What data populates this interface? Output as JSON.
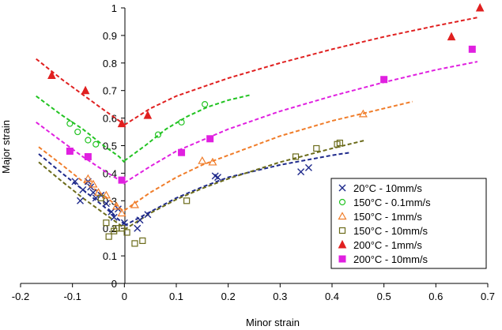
{
  "chart_data": {
    "type": "scatter",
    "title": "",
    "xlabel": "Minor strain",
    "ylabel": "Major strain",
    "xlim": [
      -0.2,
      0.7
    ],
    "ylim": [
      0,
      1
    ],
    "x_ticks": [
      "-0.2",
      "-0.1",
      "0",
      "0.1",
      "0.2",
      "0.3",
      "0.4",
      "0.5",
      "0.6",
      "0.7"
    ],
    "y_ticks": [
      "0",
      "0.1",
      "0.2",
      "0.3",
      "0.4",
      "0.5",
      "0.6",
      "0.7",
      "0.8",
      "0.9",
      "1"
    ],
    "grid": false,
    "legend_position": "bottom-right",
    "series": [
      {
        "name": "20°C - 10mm/s",
        "color": "#1f2a8c",
        "marker": "x",
        "points": [
          [
            -0.095,
            0.37
          ],
          [
            -0.085,
            0.3
          ],
          [
            -0.08,
            0.34
          ],
          [
            -0.07,
            0.37
          ],
          [
            -0.065,
            0.35
          ],
          [
            -0.06,
            0.33
          ],
          [
            -0.055,
            0.31
          ],
          [
            -0.045,
            0.32
          ],
          [
            -0.035,
            0.29
          ],
          [
            -0.025,
            0.26
          ],
          [
            -0.02,
            0.24
          ],
          [
            -0.012,
            0.27
          ],
          [
            0.0,
            0.22
          ],
          [
            0.025,
            0.2
          ],
          [
            0.03,
            0.23
          ],
          [
            0.045,
            0.25
          ],
          [
            0.175,
            0.39
          ],
          [
            0.18,
            0.385
          ],
          [
            0.34,
            0.405
          ],
          [
            0.355,
            0.42
          ]
        ],
        "fit": {
          "left": [
            [
              -0.165,
              0.47
            ],
            [
              -0.12,
              0.4
            ],
            [
              -0.08,
              0.34
            ],
            [
              -0.04,
              0.28
            ],
            [
              -0.01,
              0.23
            ],
            [
              0.0,
              0.215
            ]
          ],
          "right": [
            [
              0.0,
              0.21
            ],
            [
              0.05,
              0.26
            ],
            [
              0.1,
              0.31
            ],
            [
              0.15,
              0.35
            ],
            [
              0.2,
              0.385
            ],
            [
              0.3,
              0.43
            ],
            [
              0.4,
              0.465
            ],
            [
              0.435,
              0.475
            ]
          ]
        }
      },
      {
        "name": "150°C - 0.1mm/s",
        "color": "#22c322",
        "marker": "circle-open",
        "points": [
          [
            -0.105,
            0.58
          ],
          [
            -0.09,
            0.55
          ],
          [
            -0.07,
            0.52
          ],
          [
            -0.055,
            0.505
          ],
          [
            0.065,
            0.54
          ],
          [
            0.11,
            0.585
          ],
          [
            0.155,
            0.65
          ]
        ],
        "fit": {
          "left": [
            [
              -0.17,
              0.68
            ],
            [
              -0.12,
              0.61
            ],
            [
              -0.08,
              0.56
            ],
            [
              -0.04,
              0.5
            ],
            [
              -0.01,
              0.46
            ],
            [
              0.0,
              0.44
            ]
          ],
          "right": [
            [
              0.0,
              0.445
            ],
            [
              0.04,
              0.5
            ],
            [
              0.08,
              0.56
            ],
            [
              0.12,
              0.605
            ],
            [
              0.16,
              0.64
            ],
            [
              0.2,
              0.665
            ],
            [
              0.245,
              0.685
            ]
          ]
        }
      },
      {
        "name": "150°C - 1mm/s",
        "color": "#f07d2a",
        "marker": "triangle-open",
        "points": [
          [
            -0.07,
            0.38
          ],
          [
            -0.06,
            0.36
          ],
          [
            -0.05,
            0.33
          ],
          [
            -0.035,
            0.32
          ],
          [
            -0.015,
            0.28
          ],
          [
            -0.005,
            0.255
          ],
          [
            0.02,
            0.285
          ],
          [
            0.15,
            0.445
          ],
          [
            0.17,
            0.44
          ],
          [
            0.46,
            0.615
          ]
        ],
        "fit": {
          "left": [
            [
              -0.165,
              0.495
            ],
            [
              -0.12,
              0.43
            ],
            [
              -0.08,
              0.37
            ],
            [
              -0.04,
              0.32
            ],
            [
              -0.01,
              0.275
            ],
            [
              0.0,
              0.26
            ]
          ],
          "right": [
            [
              0.0,
              0.265
            ],
            [
              0.05,
              0.33
            ],
            [
              0.1,
              0.385
            ],
            [
              0.15,
              0.43
            ],
            [
              0.2,
              0.465
            ],
            [
              0.3,
              0.535
            ],
            [
              0.4,
              0.59
            ],
            [
              0.5,
              0.635
            ],
            [
              0.555,
              0.66
            ]
          ]
        }
      },
      {
        "name": "150°C - 10mm/s",
        "color": "#6b6b1a",
        "marker": "square-open",
        "points": [
          [
            -0.045,
            0.31
          ],
          [
            -0.035,
            0.22
          ],
          [
            -0.03,
            0.17
          ],
          [
            -0.02,
            0.19
          ],
          [
            -0.015,
            0.2
          ],
          [
            -0.005,
            0.2
          ],
          [
            0.005,
            0.185
          ],
          [
            0.02,
            0.145
          ],
          [
            0.035,
            0.155
          ],
          [
            0.12,
            0.3
          ],
          [
            0.33,
            0.46
          ],
          [
            0.37,
            0.49
          ],
          [
            0.41,
            0.505
          ],
          [
            0.415,
            0.51
          ]
        ],
        "fit": {
          "left": [
            [
              -0.165,
              0.44
            ],
            [
              -0.12,
              0.37
            ],
            [
              -0.08,
              0.31
            ],
            [
              -0.04,
              0.255
            ],
            [
              -0.01,
              0.215
            ],
            [
              0.0,
              0.2
            ]
          ],
          "right": [
            [
              0.0,
              0.195
            ],
            [
              0.05,
              0.255
            ],
            [
              0.1,
              0.305
            ],
            [
              0.15,
              0.345
            ],
            [
              0.2,
              0.38
            ],
            [
              0.3,
              0.44
            ],
            [
              0.4,
              0.49
            ],
            [
              0.465,
              0.52
            ]
          ]
        }
      },
      {
        "name": "200°C - 1mm/s",
        "color": "#e02020",
        "marker": "triangle-filled",
        "points": [
          [
            -0.14,
            0.755
          ],
          [
            -0.075,
            0.7
          ],
          [
            -0.005,
            0.58
          ],
          [
            0.045,
            0.61
          ],
          [
            0.63,
            0.895
          ],
          [
            0.685,
            1.0
          ]
        ],
        "fit": {
          "left": [
            [
              -0.17,
              0.815
            ],
            [
              -0.12,
              0.74
            ],
            [
              -0.08,
              0.685
            ],
            [
              -0.04,
              0.63
            ],
            [
              -0.01,
              0.59
            ],
            [
              0.0,
              0.575
            ]
          ],
          "right": [
            [
              0.0,
              0.575
            ],
            [
              0.05,
              0.635
            ],
            [
              0.1,
              0.68
            ],
            [
              0.2,
              0.745
            ],
            [
              0.3,
              0.8
            ],
            [
              0.4,
              0.85
            ],
            [
              0.5,
              0.895
            ],
            [
              0.6,
              0.935
            ],
            [
              0.68,
              0.965
            ]
          ]
        }
      },
      {
        "name": "200°C - 10mm/s",
        "color": "#e020e0",
        "marker": "square-filled",
        "points": [
          [
            -0.105,
            0.48
          ],
          [
            -0.07,
            0.46
          ],
          [
            -0.005,
            0.375
          ],
          [
            0.11,
            0.475
          ],
          [
            0.165,
            0.525
          ],
          [
            0.5,
            0.74
          ],
          [
            0.67,
            0.85
          ]
        ],
        "fit": {
          "left": [
            [
              -0.17,
              0.585
            ],
            [
              -0.12,
              0.515
            ],
            [
              -0.08,
              0.46
            ],
            [
              -0.04,
              0.41
            ],
            [
              -0.01,
              0.375
            ],
            [
              0.0,
              0.36
            ]
          ],
          "right": [
            [
              0.0,
              0.365
            ],
            [
              0.05,
              0.425
            ],
            [
              0.1,
              0.48
            ],
            [
              0.2,
              0.56
            ],
            [
              0.3,
              0.625
            ],
            [
              0.4,
              0.68
            ],
            [
              0.5,
              0.73
            ],
            [
              0.6,
              0.775
            ],
            [
              0.68,
              0.805
            ]
          ]
        }
      }
    ]
  }
}
